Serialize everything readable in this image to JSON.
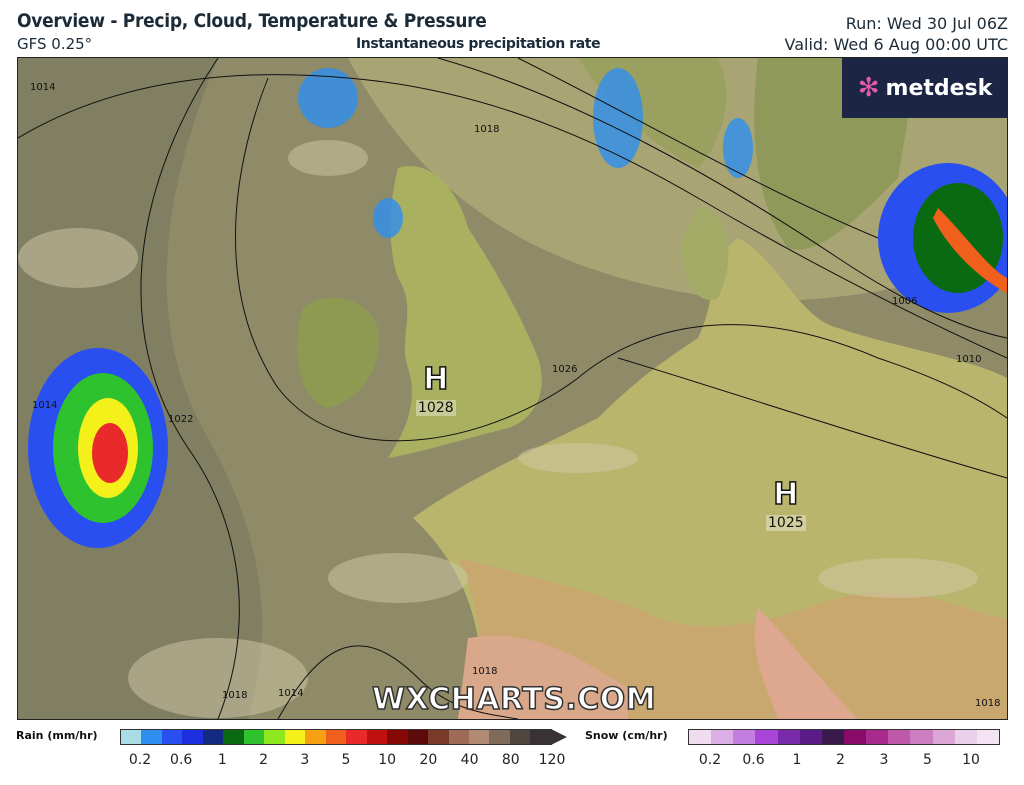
{
  "header": {
    "title": "Overview - Precip, Cloud, Temperature & Pressure",
    "model": "GFS 0.25°",
    "subtitle": "Instantaneous precipitation rate",
    "run": "Run: Wed 30 Jul 06Z",
    "valid": "Valid: Wed 6 Aug 00:00 UTC"
  },
  "logo": {
    "text": "metdesk"
  },
  "watermark": "WXCHARTS.COM",
  "pressure_centres": [
    {
      "type": "H",
      "value": "1028"
    },
    {
      "type": "H",
      "value": "1025"
    }
  ],
  "isobar_labels": [
    "1014",
    "1018",
    "1022",
    "1026",
    "1006",
    "1010",
    "1014",
    "1018",
    "1014",
    "1018",
    "1018"
  ],
  "legend": {
    "rain": {
      "label": "Rain (mm/hr)",
      "ticks": [
        "0.2",
        "0.6",
        "1",
        "2",
        "3",
        "5",
        "10",
        "20",
        "40",
        "80",
        "120"
      ],
      "colors": [
        "#a9dde6",
        "#2e8ff0",
        "#2a4ff0",
        "#1c2ee0",
        "#142a80",
        "#0a6a12",
        "#2ec22e",
        "#8ee81e",
        "#f4f01a",
        "#f6a012",
        "#f0601c",
        "#e82a2a",
        "#c01010",
        "#880808",
        "#5c0a0a",
        "#7a3a2a",
        "#a06a58",
        "#b08a72",
        "#806a5a",
        "#504640",
        "#383234"
      ]
    },
    "snow": {
      "label": "Snow (cm/hr)",
      "ticks": [
        "0.2",
        "0.6",
        "1",
        "2",
        "3",
        "5",
        "10"
      ],
      "colors": [
        "#f0dcf0",
        "#dcaee6",
        "#c47ee0",
        "#a844d8",
        "#782aa8",
        "#5a1a88",
        "#3a1a4c",
        "#8a0a6a",
        "#a82a8e",
        "#c058aa",
        "#cc7ec0",
        "#dca6d6",
        "#ead0ea",
        "#f2e4f2"
      ]
    }
  }
}
